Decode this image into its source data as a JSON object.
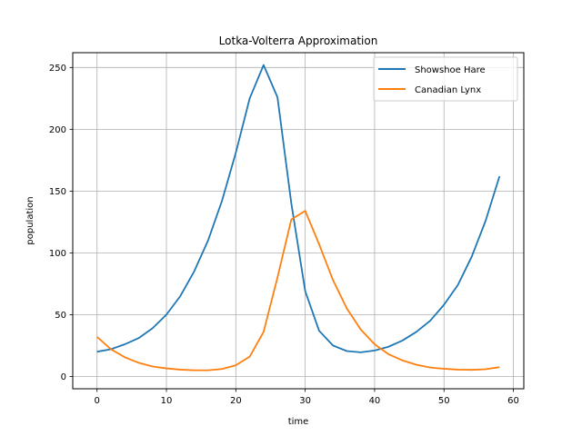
{
  "chart_data": {
    "type": "line",
    "title": "Lotka-Volterra Approximation",
    "xlabel": "time",
    "ylabel": "population",
    "xlim": [
      -3.5,
      61.5
    ],
    "ylim": [
      -10,
      262
    ],
    "xticks": [
      0,
      10,
      20,
      30,
      40,
      50,
      60
    ],
    "yticks": [
      0,
      50,
      100,
      150,
      200,
      250
    ],
    "grid": true,
    "legend_position": "top-right",
    "x": [
      0,
      2,
      4,
      6,
      8,
      10,
      12,
      14,
      16,
      18,
      20,
      22,
      24,
      26,
      28,
      30,
      32,
      34,
      36,
      38,
      40,
      42,
      44,
      46,
      48,
      50,
      52,
      54,
      56,
      58
    ],
    "series": [
      {
        "name": "Showshoe Hare",
        "color": "#1f77b4",
        "values": [
          20,
          22,
          26,
          31,
          39,
          50,
          65,
          85,
          110,
          142,
          181,
          225,
          252,
          226,
          140,
          69,
          37,
          25,
          20.5,
          19.5,
          21,
          24,
          29,
          36,
          45,
          58,
          74,
          97,
          126,
          162
        ]
      },
      {
        "name": "Canadian Lynx",
        "color": "#ff7f0e",
        "values": [
          32,
          22,
          15.5,
          11,
          8,
          6.5,
          5.5,
          5,
          5,
          6,
          9,
          16,
          36,
          80,
          127,
          134,
          107,
          78,
          55,
          38,
          26,
          18,
          13,
          9.5,
          7.2,
          6.2,
          5.5,
          5.3,
          5.8,
          7.5
        ]
      }
    ]
  }
}
